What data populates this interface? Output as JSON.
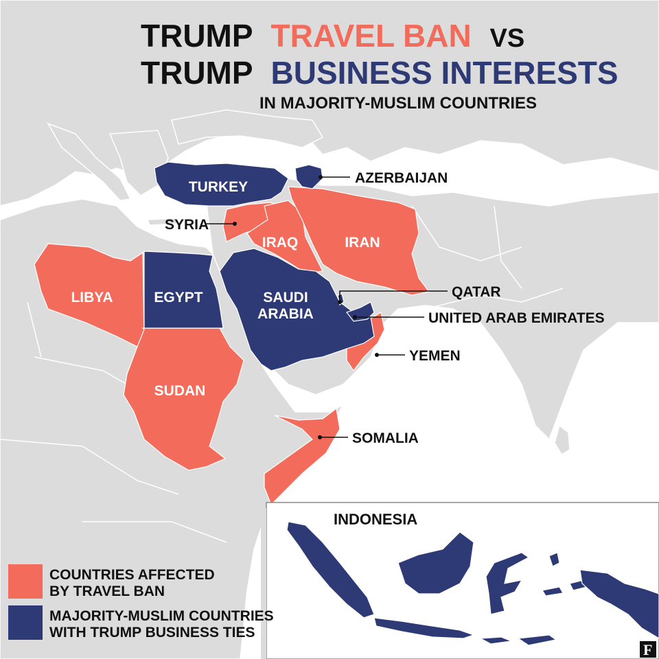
{
  "title": {
    "line1_a": "TRUMP",
    "line1_b": "TRAVEL BAN",
    "line1_c": "VS",
    "line2_a": "TRUMP",
    "line2_b": "BUSINESS INTERESTS",
    "subtitle": "IN MAJORITY-MUSLIM COUNTRIES"
  },
  "colors": {
    "travel_ban": "#f26b5b",
    "business_ties": "#2e3a75",
    "land": "#dcdcdc",
    "sea": "#ffffff"
  },
  "countries": {
    "turkey": "TURKEY",
    "azerbaijan": "AZERBAIJAN",
    "syria": "SYRIA",
    "iraq": "IRAQ",
    "iran": "IRAN",
    "libya": "LIBYA",
    "egypt": "EGYPT",
    "saudi_1": "SAUDI",
    "saudi_2": "ARABIA",
    "qatar": "QATAR",
    "uae": "UNITED ARAB EMIRATES",
    "yemen": "YEMEN",
    "sudan": "SUDAN",
    "somalia": "SOMALIA"
  },
  "legend": {
    "ban_line1": "COUNTRIES AFFECTED",
    "ban_line2": "BY TRAVEL BAN",
    "biz_line1": "MAJORITY-MUSLIM COUNTRIES",
    "biz_line2": "WITH TRUMP BUSINESS TIES"
  },
  "inset": {
    "title": "INDONESIA"
  },
  "logo": "F"
}
